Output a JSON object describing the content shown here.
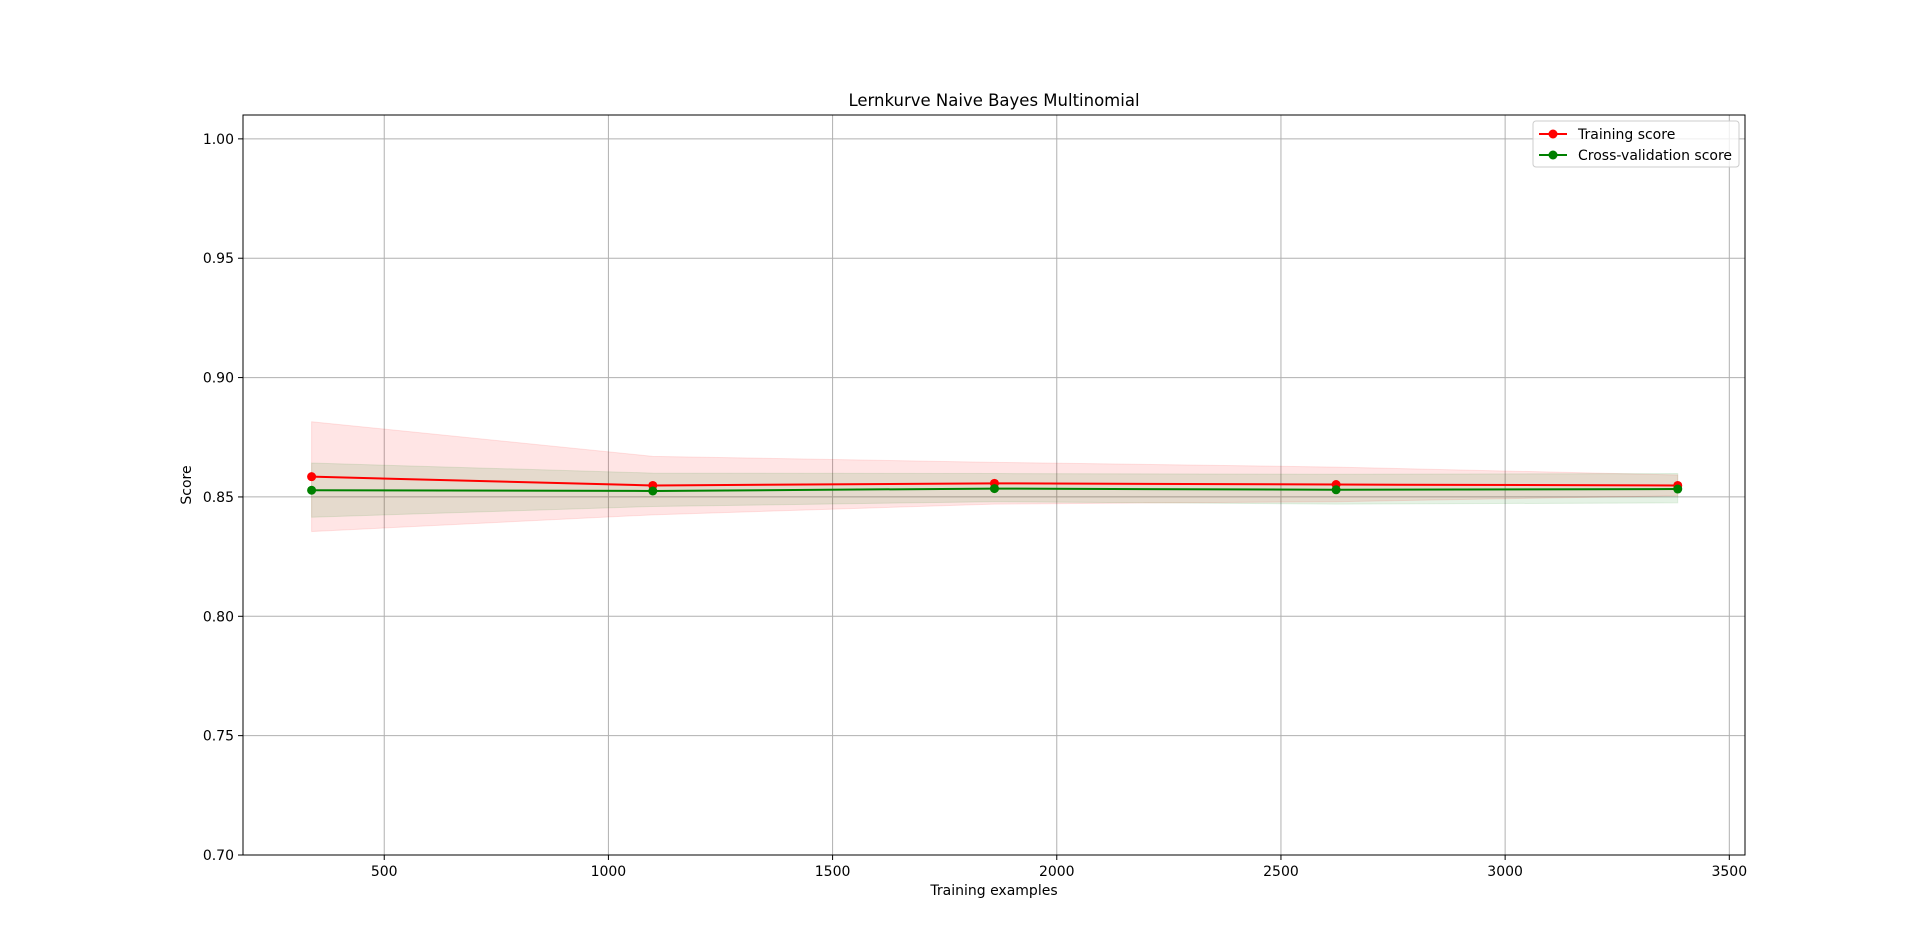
{
  "chart_data": {
    "type": "line",
    "title": "Lernkurve Naive Bayes Multinomial",
    "xlabel": "Training examples",
    "ylabel": "Score",
    "xlim": [
      185,
      3535
    ],
    "ylim": [
      0.7,
      1.01
    ],
    "xticks": [
      500,
      1000,
      1500,
      2000,
      2500,
      3000,
      3500
    ],
    "yticks": [
      0.7,
      0.75,
      0.8,
      0.85,
      0.9,
      0.95,
      1.0
    ],
    "xtick_labels": [
      "500",
      "1000",
      "1500",
      "2000",
      "2500",
      "3000",
      "3500"
    ],
    "ytick_labels": [
      "0.70",
      "0.75",
      "0.80",
      "0.85",
      "0.90",
      "0.95",
      "1.00"
    ],
    "grid": true,
    "legend_position": "top-right",
    "x": [
      338,
      1099,
      1861,
      2623,
      3385
    ],
    "series": [
      {
        "name": "Training score",
        "color": "#ff0000",
        "band_color": "#ff0000",
        "values": [
          0.8585,
          0.8548,
          0.8557,
          0.8552,
          0.8548
        ],
        "band_low": [
          0.8355,
          0.8425,
          0.847,
          0.848,
          0.8505
        ],
        "band_high": [
          0.8815,
          0.867,
          0.8645,
          0.8625,
          0.8592
        ]
      },
      {
        "name": "Cross-validation score",
        "color": "#008000",
        "band_color": "#008000",
        "values": [
          0.8528,
          0.8525,
          0.8535,
          0.853,
          0.8533
        ],
        "band_low": [
          0.8415,
          0.846,
          0.848,
          0.847,
          0.8475
        ],
        "band_high": [
          0.8642,
          0.86,
          0.8598,
          0.8595,
          0.8598
        ]
      }
    ]
  }
}
